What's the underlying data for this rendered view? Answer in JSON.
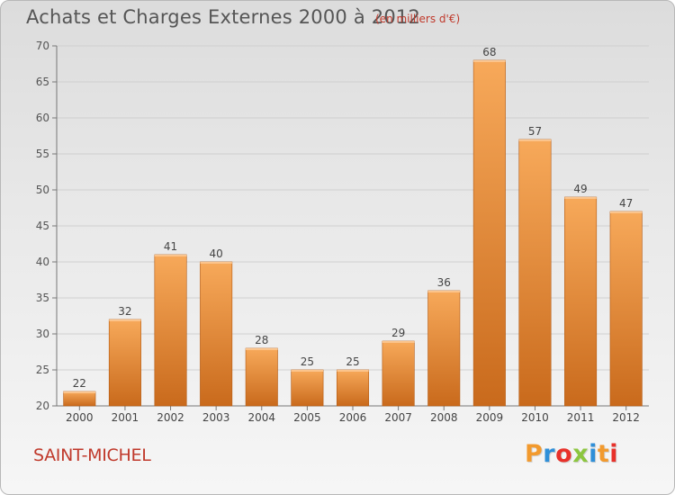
{
  "header": {
    "title": "Achats et Charges Externes 2000 à 2012",
    "subtitle": "(en milliers d'€)"
  },
  "footer": {
    "place": "SAINT-MICHEL",
    "logo_letters": [
      "P",
      "r",
      "o",
      "x",
      "i",
      "t",
      "i"
    ],
    "logo_colors": [
      "#f29a2e",
      "#2f8fd8",
      "#e8312a",
      "#8cc63f",
      "#2f8fd8",
      "#f29a2e",
      "#e8312a"
    ]
  },
  "chart_data": {
    "type": "bar",
    "title": "Achats et Charges Externes 2000 à 2012",
    "subtitle": "(en milliers d'€)",
    "categories": [
      "2000",
      "2001",
      "2002",
      "2003",
      "2004",
      "2005",
      "2006",
      "2007",
      "2008",
      "2009",
      "2010",
      "2011",
      "2012"
    ],
    "values": [
      22,
      32,
      41,
      40,
      28,
      25,
      25,
      29,
      36,
      68,
      57,
      49,
      47
    ],
    "xlabel": "",
    "ylabel": "",
    "ylim": [
      20,
      70
    ],
    "yticks": [
      20,
      25,
      30,
      35,
      40,
      45,
      50,
      55,
      60,
      65,
      70
    ],
    "grid": true,
    "bar_colors": {
      "top": "#f7a95a",
      "bottom": "#c96a1c"
    },
    "grid_color": "#cfcfcf"
  }
}
